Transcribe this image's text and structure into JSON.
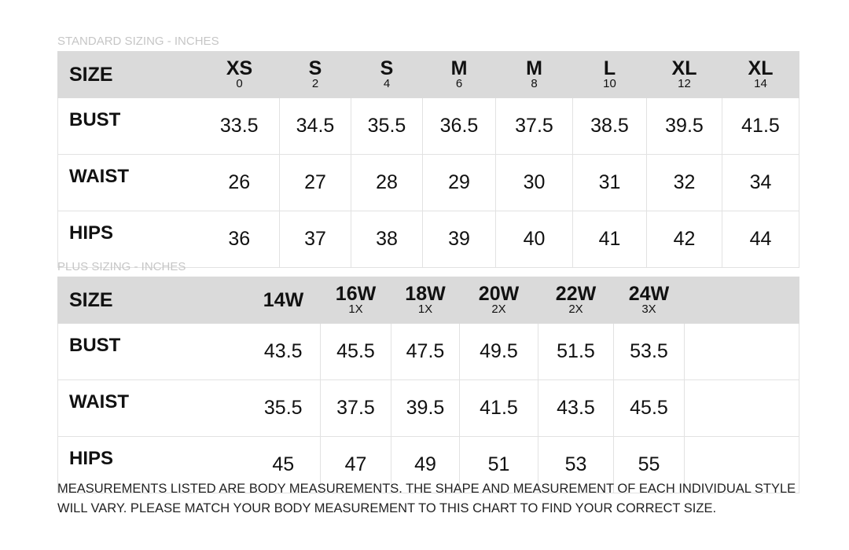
{
  "standard": {
    "title": "STANDARD SIZING - INCHES",
    "header_label": "SIZE",
    "sizes": [
      {
        "name": "XS",
        "num": "0"
      },
      {
        "name": "S",
        "num": "2"
      },
      {
        "name": "S",
        "num": "4"
      },
      {
        "name": "M",
        "num": "6"
      },
      {
        "name": "M",
        "num": "8"
      },
      {
        "name": "L",
        "num": "10"
      },
      {
        "name": "XL",
        "num": "12"
      },
      {
        "name": "XL",
        "num": "14"
      }
    ],
    "rows": [
      {
        "label": "BUST",
        "values": [
          "33.5",
          "34.5",
          "35.5",
          "36.5",
          "37.5",
          "38.5",
          "39.5",
          "41.5"
        ]
      },
      {
        "label": "WAIST",
        "values": [
          "26",
          "27",
          "28",
          "29",
          "30",
          "31",
          "32",
          "34"
        ]
      },
      {
        "label": "HIPS",
        "values": [
          "36",
          "37",
          "38",
          "39",
          "40",
          "41",
          "42",
          "44"
        ]
      }
    ]
  },
  "plus": {
    "title": "PLUS SIZING - INCHES",
    "header_label": "SIZE",
    "sizes": [
      {
        "name": "14W",
        "num": ""
      },
      {
        "name": "16W",
        "num": "1X"
      },
      {
        "name": "18W",
        "num": "1X"
      },
      {
        "name": "20W",
        "num": "2X"
      },
      {
        "name": "22W",
        "num": "2X"
      },
      {
        "name": "24W",
        "num": "3X"
      }
    ],
    "rows": [
      {
        "label": "BUST",
        "values": [
          "43.5",
          "45.5",
          "47.5",
          "49.5",
          "51.5",
          "53.5"
        ]
      },
      {
        "label": "WAIST",
        "values": [
          "35.5",
          "37.5",
          "39.5",
          "41.5",
          "43.5",
          "45.5"
        ]
      },
      {
        "label": "HIPS",
        "values": [
          "45",
          "47",
          "49",
          "51",
          "53",
          "55"
        ]
      }
    ]
  },
  "note": "MEASUREMENTS LISTED ARE BODY MEASUREMENTS. THE SHAPE AND MEASUREMENT OF EACH INDIVIDUAL STYLE WILL VARY. PLEASE MATCH YOUR BODY MEASUREMENT TO THIS CHART TO FIND YOUR CORRECT SIZE."
}
